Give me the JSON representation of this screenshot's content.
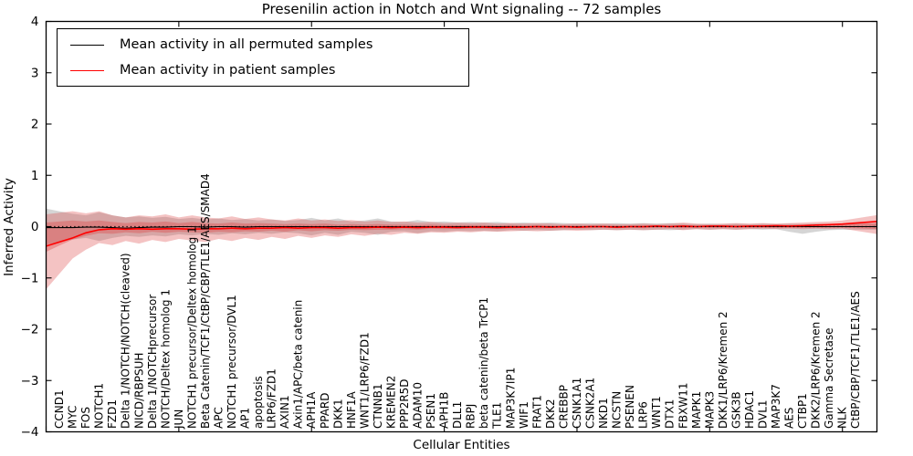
{
  "figure": {
    "title": "Presenilin action in Notch and Wnt signaling -- 72 samples",
    "xlabel": "Cellular Entities",
    "ylabel": "Inferred Activity",
    "legend": [
      {
        "label": "Mean activity in all permuted samples",
        "color": "#000000"
      },
      {
        "label": "Mean activity in patient samples",
        "color": "#ff0000"
      }
    ],
    "colors": {
      "patient_line": "#ff0000",
      "permuted_line": "#000000",
      "patient_band": "#dd4444",
      "permuted_band": "#888888",
      "baseline": "#000000",
      "background": "#ffffff"
    }
  },
  "chart_data": {
    "type": "line",
    "title": "Presenilin action in Notch and Wnt signaling -- 72 samples",
    "xlabel": "Cellular Entities",
    "ylabel": "Inferred Activity",
    "ylim": [
      -4,
      4
    ],
    "yticks": [
      -4,
      -3,
      -2,
      -1,
      0,
      1,
      2,
      3,
      4
    ],
    "xtick_indices": [
      0,
      10,
      20,
      30,
      40,
      50,
      60
    ],
    "grid": false,
    "legend_position": "upper left",
    "baseline": 0,
    "categories": [
      "CCND1",
      "MYC",
      "FOS",
      "NOTCH1",
      "FZD1",
      "Delta 1/NOTCH/NOTCH(cleaved)",
      "NICD/RBPSUH",
      "Delta 1/NOTCHprecursor",
      "NOTCH/Deltex homolog 1",
      "JUN",
      "NOTCH1 precursor/Deltex homolog 1",
      "Beta Catenin/TCF1/CtBP/CBP/TLE1/AES/SMAD4",
      "APC",
      "NOTCH1 precursor/DVL1",
      "AP1",
      "apoptosis",
      "LRP6/FZD1",
      "AXIN1",
      "Axin1/APC/beta catenin",
      "APH1A",
      "PPARD",
      "DKK1",
      "HNF1A",
      "WNT1/LRP6/FZD1",
      "CTNNB1",
      "KREMEN2",
      "PPP2R5D",
      "ADAM10",
      "PSEN1",
      "APH1B",
      "DLL1",
      "RBPJ",
      "beta catenin/beta TrCP1",
      "TLE1",
      "MAP3K7IP1",
      "WIF1",
      "FRAT1",
      "DKK2",
      "CREBBP",
      "CSNK1A1",
      "CSNK2A1",
      "NKD1",
      "NCSTN",
      "PSENEN",
      "LRP6",
      "WNT1",
      "DTX1",
      "FBXW11",
      "MAPK1",
      "MAPK3",
      "DKK1/LRP6/Kremen 2",
      "GSK3B",
      "HDAC1",
      "DVL1",
      "MAP3K7",
      "AES",
      "CTBP1",
      "DKK2/LRP6/Kremen 2",
      "Gamma Secretase",
      "NLK",
      "CtBP/CBP/TCF1/TLE1/AES"
    ],
    "series": [
      {
        "name": "Mean activity in all permuted samples",
        "color": "#000000",
        "values": [
          -0.02,
          -0.02,
          -0.01,
          -0.01,
          -0.02,
          -0.03,
          -0.02,
          -0.01,
          -0.01,
          0,
          0,
          -0.01,
          0,
          0,
          -0.01,
          0,
          0,
          0,
          0,
          0,
          0,
          0,
          0,
          0,
          0,
          0,
          0,
          0,
          0,
          0,
          0,
          0,
          0,
          0,
          0,
          0,
          0,
          0,
          0,
          0,
          0,
          0,
          0,
          0,
          0,
          0,
          0,
          0,
          0,
          0,
          0,
          0,
          0,
          0,
          0,
          0,
          0,
          0,
          0,
          0,
          0
        ]
      },
      {
        "name": "Mean activity in patient samples",
        "color": "#ff0000",
        "values": [
          -0.3,
          -0.22,
          -0.12,
          -0.06,
          -0.04,
          -0.05,
          -0.04,
          -0.05,
          -0.04,
          -0.04,
          -0.05,
          -0.04,
          -0.04,
          -0.03,
          -0.04,
          -0.03,
          -0.03,
          -0.02,
          -0.03,
          -0.02,
          -0.02,
          -0.03,
          -0.02,
          -0.02,
          -0.01,
          -0.02,
          -0.01,
          -0.02,
          -0.01,
          -0.01,
          -0.02,
          -0.01,
          -0.01,
          -0.02,
          -0.01,
          -0.01,
          0,
          -0.01,
          0,
          -0.01,
          0,
          0,
          -0.01,
          0,
          0,
          0.01,
          0,
          0.01,
          0,
          0.01,
          0.01,
          0,
          0.01,
          0.01,
          0.02,
          0.01,
          0.02,
          0.03,
          0.04,
          0.05,
          0.07
        ]
      }
    ],
    "bands": [
      {
        "name": "permuted samples spread",
        "color": "#888888",
        "opacity": 0.35,
        "upper": [
          0.3,
          0.25,
          0.22,
          0.28,
          0.22,
          0.18,
          0.2,
          0.17,
          0.19,
          0.15,
          0.17,
          0.14,
          0.16,
          0.13,
          0.15,
          0.12,
          0.14,
          0.11,
          0.13,
          0.17,
          0.12,
          0.16,
          0.1,
          0.12,
          0.16,
          0.1,
          0.09,
          0.13,
          0.09,
          0.1,
          0.08,
          0.09,
          0.08,
          0.09,
          0.07,
          0.08,
          0.07,
          0.08,
          0.07,
          0.06,
          0.07,
          0.06,
          0.07,
          0.06,
          0.07,
          0.06,
          0.07,
          0.06,
          0.05,
          0.06,
          0.05,
          0.06,
          0.05,
          0.06,
          0.05,
          0.06,
          0.05,
          0.06,
          0.05,
          0.06,
          0.06
        ],
        "lower": [
          -0.3,
          -0.25,
          -0.22,
          -0.28,
          -0.22,
          -0.18,
          -0.2,
          -0.17,
          -0.19,
          -0.15,
          -0.17,
          -0.14,
          -0.16,
          -0.13,
          -0.15,
          -0.12,
          -0.14,
          -0.11,
          -0.13,
          -0.17,
          -0.12,
          -0.16,
          -0.1,
          -0.12,
          -0.16,
          -0.1,
          -0.09,
          -0.13,
          -0.09,
          -0.1,
          -0.08,
          -0.09,
          -0.08,
          -0.09,
          -0.07,
          -0.08,
          -0.07,
          -0.08,
          -0.07,
          -0.06,
          -0.07,
          -0.06,
          -0.07,
          -0.06,
          -0.07,
          -0.06,
          -0.07,
          -0.06,
          -0.05,
          -0.06,
          -0.05,
          -0.06,
          -0.05,
          -0.06,
          -0.05,
          -0.1,
          -0.14,
          -0.1,
          -0.07,
          -0.06,
          -0.06
        ]
      },
      {
        "name": "patient samples spread (outer)",
        "color": "#dd4444",
        "opacity": 0.32,
        "upper": [
          0.27,
          0.3,
          0.26,
          0.3,
          0.22,
          0.18,
          0.22,
          0.2,
          0.24,
          0.18,
          0.22,
          0.18,
          0.16,
          0.2,
          0.15,
          0.18,
          0.14,
          0.12,
          0.16,
          0.12,
          0.14,
          0.11,
          0.13,
          0.1,
          0.12,
          0.09,
          0.1,
          0.08,
          0.09,
          0.07,
          0.08,
          0.07,
          0.08,
          0.06,
          0.07,
          0.06,
          0.07,
          0.06,
          0.05,
          0.06,
          0.05,
          0.06,
          0.05,
          0.05,
          0.06,
          0.05,
          0.06,
          0.08,
          0.06,
          0.05,
          0.06,
          0.07,
          0.06,
          0.07,
          0.06,
          0.07,
          0.08,
          0.09,
          0.1,
          0.12,
          0.16
        ],
        "lower": [
          -0.92,
          -0.62,
          -0.45,
          -0.32,
          -0.36,
          -0.28,
          -0.33,
          -0.26,
          -0.3,
          -0.24,
          -0.27,
          -0.3,
          -0.24,
          -0.28,
          -0.22,
          -0.26,
          -0.2,
          -0.24,
          -0.18,
          -0.22,
          -0.17,
          -0.2,
          -0.15,
          -0.18,
          -0.14,
          -0.16,
          -0.12,
          -0.14,
          -0.11,
          -0.12,
          -0.1,
          -0.11,
          -0.09,
          -0.1,
          -0.09,
          -0.08,
          -0.09,
          -0.08,
          -0.07,
          -0.08,
          -0.07,
          -0.06,
          -0.07,
          -0.06,
          -0.07,
          -0.06,
          -0.05,
          -0.07,
          -0.05,
          -0.06,
          -0.05,
          -0.06,
          -0.05,
          -0.04,
          -0.05,
          -0.04,
          -0.05,
          -0.04,
          -0.05,
          -0.04,
          -0.08
        ]
      },
      {
        "name": "patient samples spread (inner)",
        "color": "#dd4444",
        "opacity": 0.38,
        "upper": [
          0.1,
          0.12,
          0.1,
          0.12,
          0.09,
          0.07,
          0.09,
          0.08,
          0.1,
          0.07,
          0.09,
          0.07,
          0.06,
          0.08,
          0.06,
          0.07,
          0.06,
          0.05,
          0.06,
          0.05,
          0.06,
          0.04,
          0.05,
          0.04,
          0.05,
          0.04,
          0.04,
          0.03,
          0.04,
          0.03,
          0.03,
          0.03,
          0.03,
          0.02,
          0.03,
          0.02,
          0.03,
          0.02,
          0.02,
          0.02,
          0.02,
          0.02,
          0.02,
          0.02,
          0.02,
          0.02,
          0.02,
          0.03,
          0.02,
          0.02,
          0.02,
          0.03,
          0.02,
          0.03,
          0.02,
          0.03,
          0.03,
          0.04,
          0.04,
          0.05,
          0.06
        ],
        "lower": [
          -0.37,
          -0.25,
          -0.18,
          -0.13,
          -0.14,
          -0.11,
          -0.13,
          -0.1,
          -0.12,
          -0.1,
          -0.11,
          -0.12,
          -0.1,
          -0.11,
          -0.09,
          -0.1,
          -0.08,
          -0.1,
          -0.07,
          -0.09,
          -0.07,
          -0.08,
          -0.06,
          -0.07,
          -0.06,
          -0.06,
          -0.05,
          -0.06,
          -0.04,
          -0.05,
          -0.04,
          -0.04,
          -0.04,
          -0.04,
          -0.04,
          -0.03,
          -0.04,
          -0.03,
          -0.03,
          -0.03,
          -0.03,
          -0.02,
          -0.03,
          -0.02,
          -0.03,
          -0.02,
          -0.02,
          -0.03,
          -0.02,
          -0.02,
          -0.02,
          -0.02,
          -0.02,
          -0.02,
          -0.02,
          -0.02,
          -0.02,
          -0.02,
          -0.02,
          -0.02,
          -0.03
        ]
      }
    ]
  }
}
